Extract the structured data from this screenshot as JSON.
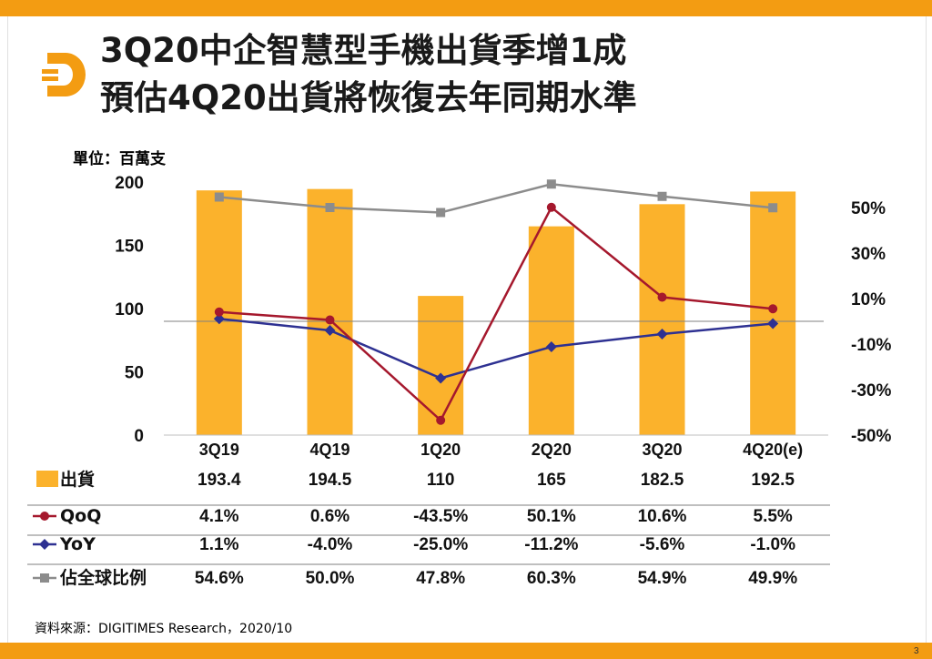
{
  "title_lines": [
    "3Q20中企智慧型手機出貨季增1成",
    "預估4Q20出貨將恢復去年同期水準"
  ],
  "unit_label": "單位：百萬支",
  "source": "資料來源：DIGITIMES Research，2020/10",
  "page_number": "3",
  "colors": {
    "accent": "#f39c12",
    "bar": "#fbb22c",
    "qoq": "#a5182d",
    "yoy": "#2e3192",
    "share": "#8c8c8c"
  },
  "chart_data": {
    "type": "bar",
    "categories": [
      "3Q19",
      "4Q19",
      "1Q20",
      "2Q20",
      "3Q20",
      "4Q20(e)"
    ],
    "left_ticks": [
      "200",
      "150",
      "100",
      "50",
      "0"
    ],
    "right_ticks": [
      "50%",
      "30%",
      "10%",
      "-10%",
      "-30%",
      "-50%"
    ],
    "ylim": [
      0,
      200
    ],
    "y2lim": [
      -50,
      60
    ],
    "series": [
      {
        "name": "出貨",
        "kind": "bar",
        "values": [
          193.4,
          194.5,
          110,
          165,
          182.5,
          192.5
        ],
        "labels": [
          "193.4",
          "194.5",
          "110",
          "165",
          "182.5",
          "192.5"
        ]
      },
      {
        "name": "QoQ",
        "kind": "line",
        "axis": "right",
        "values": [
          4.1,
          0.6,
          -43.5,
          50.1,
          10.6,
          5.5
        ],
        "labels": [
          "4.1%",
          "0.6%",
          "-43.5%",
          "50.1%",
          "10.6%",
          "5.5%"
        ]
      },
      {
        "name": "YoY",
        "kind": "line",
        "axis": "right",
        "values": [
          1.1,
          -4.0,
          -25.0,
          -11.2,
          -5.6,
          -1.0
        ],
        "labels": [
          "1.1%",
          "-4.0%",
          "-25.0%",
          "-11.2%",
          "-5.6%",
          "-1.0%"
        ]
      },
      {
        "name": "佔全球比例",
        "kind": "line",
        "axis": "right",
        "values": [
          54.6,
          50.0,
          47.8,
          60.3,
          54.9,
          49.9
        ],
        "labels": [
          "54.6%",
          "50.0%",
          "47.8%",
          "60.3%",
          "54.9%",
          "49.9%"
        ]
      }
    ]
  }
}
